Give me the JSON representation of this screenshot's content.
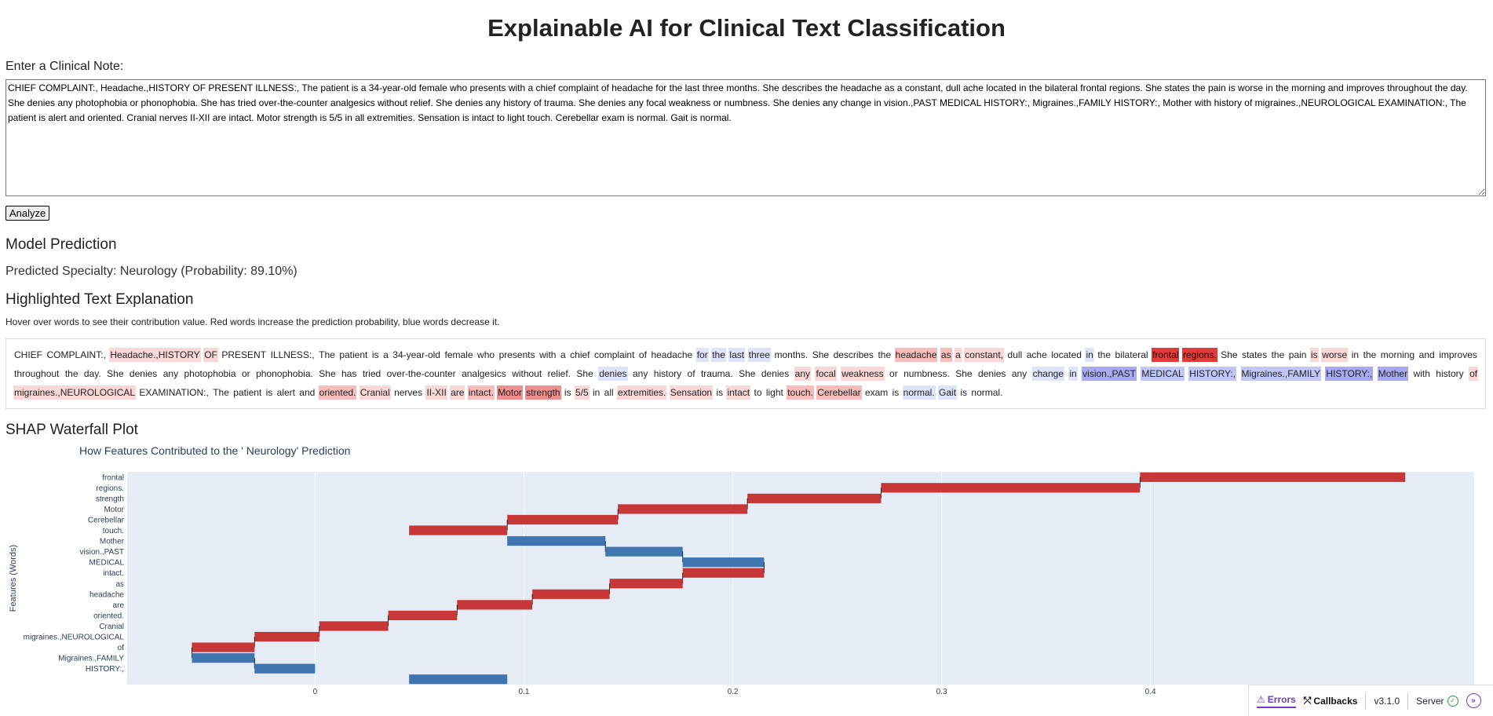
{
  "page": {
    "title": "Explainable AI for Clinical Text Classification"
  },
  "input": {
    "label": "Enter a Clinical Note:",
    "value": "CHIEF COMPLAINT:, Headache.,HISTORY OF PRESENT ILLNESS:, The patient is a 34-year-old female who presents with a chief complaint of headache for the last three months. She describes the headache as a constant, dull ache located in the bilateral frontal regions. She states the pain is worse in the morning and improves throughout the day. She denies any photophobia or phonophobia. She has tried over-the-counter analgesics without relief. She denies any history of trauma. She denies any focal weakness or numbness. She denies any change in vision.,PAST MEDICAL HISTORY:, Migraines.,FAMILY HISTORY:, Mother with history of migraines.,NEUROLOGICAL EXAMINATION:, The patient is alert and oriented. Cranial nerves II-XII are intact. Motor strength is 5/5 in all extremities. Sensation is intact to light touch. Cerebellar exam is normal. Gait is normal.",
    "button_label": "Analyze"
  },
  "prediction": {
    "heading": "Model Prediction",
    "text": "Predicted Specialty: Neurology (Probability: 89.10%)"
  },
  "explanation": {
    "heading": "Highlighted Text Explanation",
    "hint": "Hover over words to see their contribution value. Red words increase the prediction probability, blue words decrease it.",
    "words": [
      {
        "w": "CHIEF",
        "c": "none"
      },
      {
        "w": "COMPLAINT:,",
        "c": "none"
      },
      {
        "w": "Headache.,HISTORY",
        "c": "r1"
      },
      {
        "w": "OF",
        "c": "r1"
      },
      {
        "w": "PRESENT",
        "c": "none"
      },
      {
        "w": "ILLNESS:,",
        "c": "none"
      },
      {
        "w": "The",
        "c": "none"
      },
      {
        "w": "patient",
        "c": "none"
      },
      {
        "w": "is",
        "c": "none"
      },
      {
        "w": "a",
        "c": "none"
      },
      {
        "w": "34-year-old",
        "c": "none"
      },
      {
        "w": "female",
        "c": "none"
      },
      {
        "w": "who",
        "c": "none"
      },
      {
        "w": "presents",
        "c": "none"
      },
      {
        "w": "with",
        "c": "none"
      },
      {
        "w": "a",
        "c": "none"
      },
      {
        "w": "chief",
        "c": "none"
      },
      {
        "w": "complaint",
        "c": "none"
      },
      {
        "w": "of",
        "c": "none"
      },
      {
        "w": "headache",
        "c": "none"
      },
      {
        "w": "for",
        "c": "b1"
      },
      {
        "w": "the",
        "c": "b1"
      },
      {
        "w": "last",
        "c": "b1"
      },
      {
        "w": "three",
        "c": "b1"
      },
      {
        "w": "months.",
        "c": "none"
      },
      {
        "w": "She",
        "c": "none"
      },
      {
        "w": "describes",
        "c": "none"
      },
      {
        "w": "the",
        "c": "none"
      },
      {
        "w": "headache",
        "c": "r2"
      },
      {
        "w": "as",
        "c": "r2"
      },
      {
        "w": "a",
        "c": "r1"
      },
      {
        "w": "constant,",
        "c": "r1"
      },
      {
        "w": "dull",
        "c": "none"
      },
      {
        "w": "ache",
        "c": "none"
      },
      {
        "w": "located",
        "c": "none"
      },
      {
        "w": "in",
        "c": "b1"
      },
      {
        "w": "the",
        "c": "none"
      },
      {
        "w": "bilateral",
        "c": "none"
      },
      {
        "w": "frontal",
        "c": "r5"
      },
      {
        "w": "regions.",
        "c": "r5"
      },
      {
        "w": "She",
        "c": "none"
      },
      {
        "w": "states",
        "c": "none"
      },
      {
        "w": "the",
        "c": "none"
      },
      {
        "w": "pain",
        "c": "none"
      },
      {
        "w": "is",
        "c": "r1"
      },
      {
        "w": "worse",
        "c": "r1"
      },
      {
        "w": "in",
        "c": "none"
      },
      {
        "w": "the",
        "c": "none"
      },
      {
        "w": "morning",
        "c": "none"
      },
      {
        "w": "and",
        "c": "none"
      },
      {
        "w": "improves",
        "c": "none"
      },
      {
        "w": "throughout",
        "c": "none"
      },
      {
        "w": "the",
        "c": "none"
      },
      {
        "w": "day.",
        "c": "none"
      },
      {
        "w": "She",
        "c": "none"
      },
      {
        "w": "denies",
        "c": "none"
      },
      {
        "w": "any",
        "c": "none"
      },
      {
        "w": "photophobia",
        "c": "none"
      },
      {
        "w": "or",
        "c": "none"
      },
      {
        "w": "phonophobia.",
        "c": "none"
      },
      {
        "w": "She",
        "c": "none"
      },
      {
        "w": "has",
        "c": "none"
      },
      {
        "w": "tried",
        "c": "none"
      },
      {
        "w": "over-the-counter",
        "c": "none"
      },
      {
        "w": "analgesics",
        "c": "none"
      },
      {
        "w": "without",
        "c": "none"
      },
      {
        "w": "relief.",
        "c": "none"
      },
      {
        "w": "She",
        "c": "none"
      },
      {
        "w": "denies",
        "c": "b1"
      },
      {
        "w": "any",
        "c": "none"
      },
      {
        "w": "history",
        "c": "none"
      },
      {
        "w": "of",
        "c": "none"
      },
      {
        "w": "trauma.",
        "c": "none"
      },
      {
        "w": "She",
        "c": "none"
      },
      {
        "w": "denies",
        "c": "none"
      },
      {
        "w": "any",
        "c": "r1"
      },
      {
        "w": "focal",
        "c": "r1"
      },
      {
        "w": "weakness",
        "c": "r1"
      },
      {
        "w": "or",
        "c": "none"
      },
      {
        "w": "numbness.",
        "c": "none"
      },
      {
        "w": "She",
        "c": "none"
      },
      {
        "w": "denies",
        "c": "none"
      },
      {
        "w": "any",
        "c": "none"
      },
      {
        "w": "change",
        "c": "b1"
      },
      {
        "w": "in",
        "c": "b1"
      },
      {
        "w": "vision.,PAST",
        "c": "b3"
      },
      {
        "w": "MEDICAL",
        "c": "b2"
      },
      {
        "w": "HISTORY:,",
        "c": "b2"
      },
      {
        "w": "Migraines.,FAMILY",
        "c": "b2"
      },
      {
        "w": "HISTORY:,",
        "c": "b3"
      },
      {
        "w": "Mother",
        "c": "b3"
      },
      {
        "w": "with",
        "c": "none"
      },
      {
        "w": "history",
        "c": "none"
      },
      {
        "w": "of",
        "c": "r1"
      },
      {
        "w": "migraines.,NEUROLOGICAL",
        "c": "r1"
      },
      {
        "w": "EXAMINATION:,",
        "c": "none"
      },
      {
        "w": "The",
        "c": "none"
      },
      {
        "w": "patient",
        "c": "none"
      },
      {
        "w": "is",
        "c": "none"
      },
      {
        "w": "alert",
        "c": "none"
      },
      {
        "w": "and",
        "c": "none"
      },
      {
        "w": "oriented.",
        "c": "r2"
      },
      {
        "w": "Cranial",
        "c": "r1"
      },
      {
        "w": "nerves",
        "c": "none"
      },
      {
        "w": "II-XII",
        "c": "r1"
      },
      {
        "w": "are",
        "c": "r1"
      },
      {
        "w": "intact.",
        "c": "r2"
      },
      {
        "w": "Motor",
        "c": "r3"
      },
      {
        "w": "strength",
        "c": "r3"
      },
      {
        "w": "is",
        "c": "none"
      },
      {
        "w": "5/5",
        "c": "r1"
      },
      {
        "w": "in",
        "c": "none"
      },
      {
        "w": "all",
        "c": "none"
      },
      {
        "w": "extremities.",
        "c": "r1"
      },
      {
        "w": "Sensation",
        "c": "r1"
      },
      {
        "w": "is",
        "c": "none"
      },
      {
        "w": "intact",
        "c": "r1"
      },
      {
        "w": "to",
        "c": "none"
      },
      {
        "w": "light",
        "c": "none"
      },
      {
        "w": "touch.",
        "c": "r2"
      },
      {
        "w": "Cerebellar",
        "c": "r2"
      },
      {
        "w": "exam",
        "c": "none"
      },
      {
        "w": "is",
        "c": "none"
      },
      {
        "w": "normal.",
        "c": "b1"
      },
      {
        "w": "Gait",
        "c": "b1"
      },
      {
        "w": "is",
        "c": "none"
      },
      {
        "w": "normal.",
        "c": "none"
      }
    ]
  },
  "shap": {
    "heading": "SHAP Waterfall Plot",
    "colors": {
      "positive": "#c83737",
      "negative": "#3f76b0",
      "bg": "#e5ecf6",
      "grid": "#ffffff",
      "axis_text": "#2a3f5f"
    }
  },
  "chart_data": {
    "type": "waterfall",
    "title": "How Features Contributed to the ' Neurology' Prediction",
    "ylabel": "Features (Words)",
    "xlim": [
      -0.09,
      0.555
    ],
    "xticks": [
      0,
      0.1,
      0.2,
      0.3,
      0.4
    ],
    "features": [
      {
        "label": "frontal",
        "start": 0.395,
        "end": 0.522
      },
      {
        "label": "regions.",
        "start": 0.271,
        "end": 0.395
      },
      {
        "label": "strength",
        "start": 0.207,
        "end": 0.271
      },
      {
        "label": "Motor",
        "start": 0.145,
        "end": 0.207
      },
      {
        "label": "Cerebellar",
        "start": 0.092,
        "end": 0.145
      },
      {
        "label": "touch.",
        "start": 0.045,
        "end": 0.092
      },
      {
        "label": "Mother",
        "start": 0.139,
        "end": 0.092
      },
      {
        "label": "vision.,PAST",
        "start": 0.176,
        "end": 0.139
      },
      {
        "label": "MEDICAL",
        "start": 0.215,
        "end": 0.176
      },
      {
        "label": "intact.",
        "start": 0.176,
        "end": 0.215
      },
      {
        "label": "as",
        "start": 0.141,
        "end": 0.176
      },
      {
        "label": "headache",
        "start": 0.104,
        "end": 0.141
      },
      {
        "label": "are",
        "start": 0.068,
        "end": 0.104
      },
      {
        "label": "oriented.",
        "start": 0.035,
        "end": 0.068
      },
      {
        "label": "Cranial",
        "start": 0.002,
        "end": 0.035
      },
      {
        "label": "migraines.,NEUROLOGICAL",
        "start": -0.029,
        "end": 0.002
      },
      {
        "label": "of",
        "start": -0.059,
        "end": -0.029
      },
      {
        "label": "Migraines.,FAMILY",
        "start": -0.029,
        "end": -0.059
      },
      {
        "label": "HISTORY:,",
        "start": 0.0,
        "end": -0.029
      },
      {
        "label": "",
        "start": 0.092,
        "end": 0.045
      }
    ]
  },
  "devtools": {
    "errors_label": "Errors",
    "callbacks_label": "Callbacks",
    "version": "v3.1.0",
    "server_label": "Server"
  }
}
